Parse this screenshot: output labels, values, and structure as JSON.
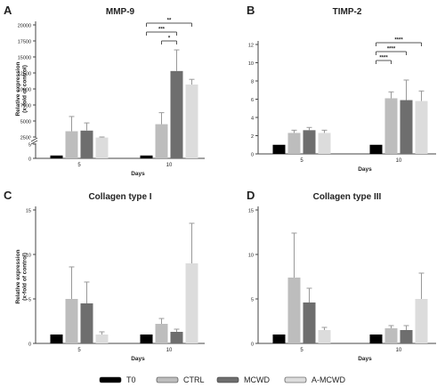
{
  "legend": {
    "items": [
      {
        "label": "T0",
        "color": "#000000"
      },
      {
        "label": "CTRL",
        "color": "#bdbdbd"
      },
      {
        "label": "MCWD",
        "color": "#6e6e6e"
      },
      {
        "label": "A-MCWD",
        "color": "#dcdcdc"
      }
    ]
  },
  "chart_data": [
    {
      "panel_letter": "A",
      "type": "bar",
      "title": "MMP-9",
      "xlabel": "Days",
      "ylabel": "Relative expression\n(x-fold of control)",
      "categories": [
        "5",
        "10"
      ],
      "axis_break": {
        "lower_range": [
          0,
          5
        ],
        "upper_range": [
          2500,
          20000
        ]
      },
      "yticks": [
        "0",
        "5",
        "2500",
        "5000",
        "7500",
        "10000",
        "12500",
        "15000",
        "17500",
        "20000"
      ],
      "series": [
        {
          "name": "T0",
          "values": [
            1,
            1
          ],
          "errors": [
            0,
            0
          ]
        },
        {
          "name": "CTRL",
          "values": [
            3400,
            4500
          ],
          "errors": [
            2300,
            1800
          ]
        },
        {
          "name": "MCWD",
          "values": [
            3500,
            12800
          ],
          "errors": [
            1200,
            3300
          ]
        },
        {
          "name": "A-MCWD",
          "values": [
            2300,
            10700
          ],
          "errors": [
            200,
            800
          ]
        }
      ],
      "significance": [
        {
          "day": "10",
          "from": "T0",
          "to": "A-MCWD",
          "label": "**"
        },
        {
          "day": "10",
          "from": "T0",
          "to": "MCWD",
          "label": "***"
        },
        {
          "day": "10",
          "from": "CTRL",
          "to": "MCWD",
          "label": "*"
        }
      ]
    },
    {
      "panel_letter": "B",
      "type": "bar",
      "title": "TIMP-2",
      "xlabel": "Days",
      "ylabel": "",
      "categories": [
        "5",
        "10"
      ],
      "ylim": [
        0,
        12
      ],
      "yticks": [
        "0",
        "2",
        "4",
        "6",
        "8",
        "10",
        "12"
      ],
      "series": [
        {
          "name": "T0",
          "values": [
            1,
            1
          ],
          "errors": [
            0,
            0
          ]
        },
        {
          "name": "CTRL",
          "values": [
            2.3,
            6.1
          ],
          "errors": [
            0.3,
            0.7
          ]
        },
        {
          "name": "MCWD",
          "values": [
            2.6,
            5.9
          ],
          "errors": [
            0.3,
            2.2
          ]
        },
        {
          "name": "A-MCWD",
          "values": [
            2.3,
            5.8
          ],
          "errors": [
            0.3,
            1.1
          ]
        }
      ],
      "significance": [
        {
          "day": "10",
          "from": "T0",
          "to": "A-MCWD",
          "label": "****"
        },
        {
          "day": "10",
          "from": "T0",
          "to": "MCWD",
          "label": "****"
        },
        {
          "day": "10",
          "from": "T0",
          "to": "CTRL",
          "label": "****"
        }
      ]
    },
    {
      "panel_letter": "C",
      "type": "bar",
      "title": "Collagen type I",
      "xlabel": "Days",
      "ylabel": "Relative expression\n(x-fold of control)",
      "categories": [
        "5",
        "10"
      ],
      "ylim": [
        0,
        15
      ],
      "yticks": [
        "0",
        "5",
        "10",
        "15"
      ],
      "series": [
        {
          "name": "T0",
          "values": [
            1,
            1
          ],
          "errors": [
            0,
            0
          ]
        },
        {
          "name": "CTRL",
          "values": [
            5.0,
            2.2
          ],
          "errors": [
            3.6,
            0.6
          ]
        },
        {
          "name": "MCWD",
          "values": [
            4.5,
            1.3
          ],
          "errors": [
            2.4,
            0.3
          ]
        },
        {
          "name": "A-MCWD",
          "values": [
            1.0,
            9.0
          ],
          "errors": [
            0.3,
            4.5
          ]
        }
      ],
      "significance": []
    },
    {
      "panel_letter": "D",
      "type": "bar",
      "title": "Collagen type III",
      "xlabel": "Days",
      "ylabel": "",
      "categories": [
        "5",
        "10"
      ],
      "ylim": [
        0,
        15
      ],
      "yticks": [
        "0",
        "5",
        "10",
        "15"
      ],
      "series": [
        {
          "name": "T0",
          "values": [
            1,
            1
          ],
          "errors": [
            0,
            0
          ]
        },
        {
          "name": "CTRL",
          "values": [
            7.4,
            1.7
          ],
          "errors": [
            5.0,
            0.3
          ]
        },
        {
          "name": "MCWD",
          "values": [
            4.6,
            1.5
          ],
          "errors": [
            1.6,
            0.5
          ]
        },
        {
          "name": "A-MCWD",
          "values": [
            1.5,
            5.0
          ],
          "errors": [
            0.3,
            2.9
          ]
        }
      ],
      "significance": []
    }
  ]
}
